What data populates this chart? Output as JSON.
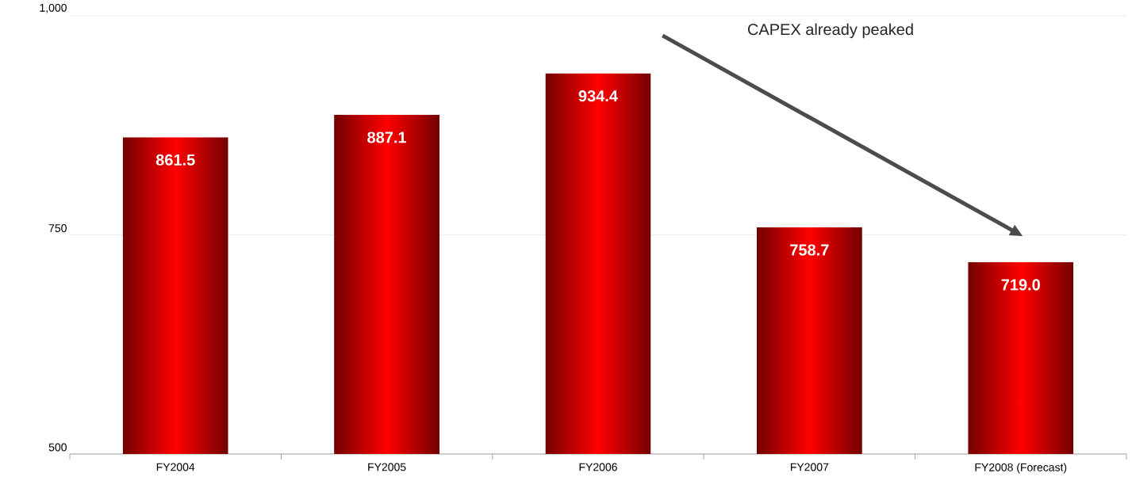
{
  "chart_data": {
    "type": "bar",
    "categories": [
      "FY2004",
      "FY2005",
      "FY2006",
      "FY2007",
      "FY2008 (Forecast)"
    ],
    "values": [
      861.5,
      887.1,
      934.4,
      758.7,
      719.0
    ],
    "value_labels": [
      "861.5",
      "887.1",
      "934.4",
      "758.7",
      "719.0"
    ],
    "color": "#ff0000",
    "ylim": [
      500,
      1000
    ],
    "yticks": [
      500,
      750,
      {
        "value": 1000,
        "label": "1,000"
      }
    ],
    "grid": "y",
    "annotations": [
      "CAPEX already peaked"
    ]
  }
}
